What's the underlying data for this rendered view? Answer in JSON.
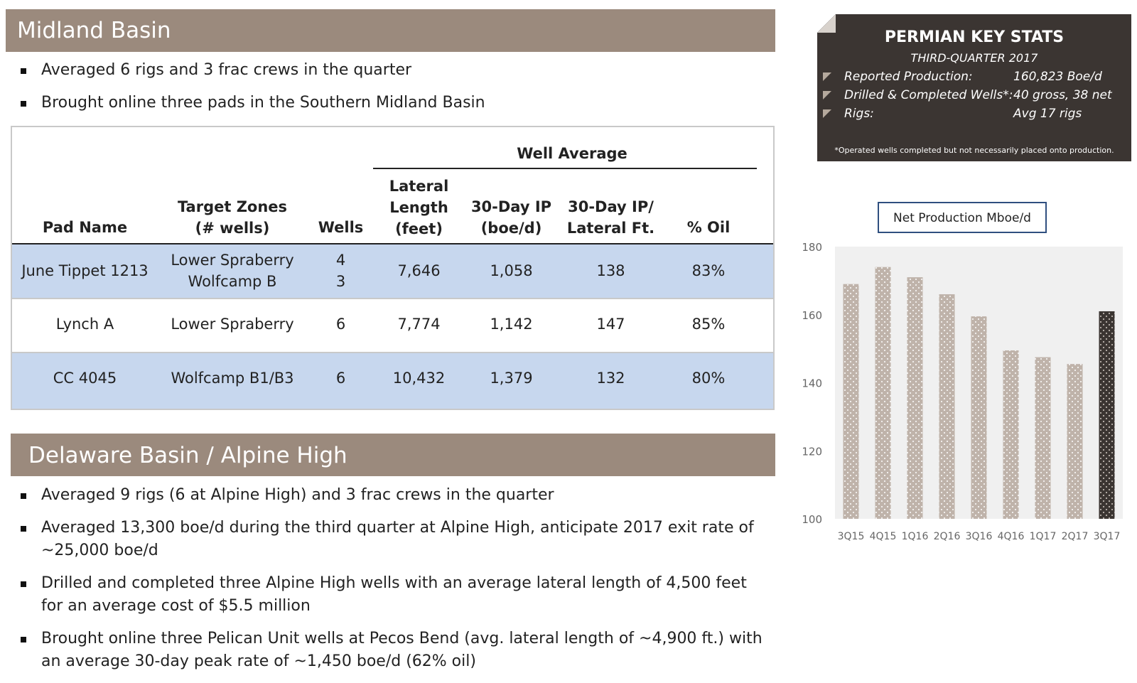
{
  "midland": {
    "title": "Midland Basin",
    "bullets": [
      "Averaged 6 rigs and 3 frac crews in the quarter",
      "Brought online three pads in the Southern Midland Basin"
    ]
  },
  "table": {
    "group_header": "Well Average",
    "headers": {
      "pad_name": "Pad Name",
      "target_zones_1": "Target Zones",
      "target_zones_2": "(# wells)",
      "wells": "Wells",
      "lateral_1": "Lateral",
      "lateral_2": "Length",
      "lateral_3": "(feet)",
      "ip_1": "30-Day IP",
      "ip_2": "(boe/d)",
      "iplat_1": "30-Day IP/",
      "iplat_2": "Lateral Ft.",
      "oil": "% Oil"
    },
    "rows": [
      {
        "pad": "June Tippet 1213",
        "zone1": "Lower Spraberry",
        "zone2": "Wolfcamp B",
        "wells1": "4",
        "wells2": "3",
        "lateral": "7,646",
        "ip": "1,058",
        "iplat": "138",
        "oil": "83%"
      },
      {
        "pad": "Lynch A",
        "zone1": "Lower Spraberry",
        "zone2": "",
        "wells1": "6",
        "wells2": "",
        "lateral": "7,774",
        "ip": "1,142",
        "iplat": "147",
        "oil": "85%"
      },
      {
        "pad": "CC 4045",
        "zone1": "Wolfcamp B1/B3",
        "zone2": "",
        "wells1": "6",
        "wells2": "",
        "lateral": "10,432",
        "ip": "1,379",
        "iplat": "132",
        "oil": "80%"
      }
    ]
  },
  "delaware": {
    "title": "Delaware Basin / Alpine High",
    "bullets": [
      [
        "Averaged 9 rigs (6 at Alpine High) and 3 frac crews in the quarter"
      ],
      [
        "Averaged 13,300 boe/d during the third quarter at Alpine High, anticipate 2017 exit rate of",
        "~25,000 boe/d"
      ],
      [
        "Drilled and completed three Alpine High wells with an average lateral length of 4,500 feet",
        "for an average cost of $5.5 million"
      ],
      [
        "Brought online three Pelican Unit wells at Pecos Bend (avg. lateral length of ~4,900 ft.) with",
        "an average 30-day peak rate of ~1,450 boe/d (62% oil)"
      ]
    ]
  },
  "key_stats": {
    "title": "PERMIAN KEY STATS",
    "subtitle": "THIRD-QUARTER 2017",
    "rows": [
      {
        "label": "Reported Production:",
        "value": "160,823 Boe/d"
      },
      {
        "label": "Drilled & Completed Wells*:",
        "value": "40 gross,  38 net"
      },
      {
        "label": "Rigs:",
        "value": "Avg 17 rigs"
      }
    ],
    "note": "*Operated wells completed but not necessarily placed onto production."
  },
  "colors": {
    "header_bg": "#9b8a7d",
    "row_shade": "#c7d7ee",
    "stats_bg": "#3b3532",
    "bar_light": "#bfb3aa",
    "bar_dark": "#3b3532",
    "plot_bg": "#f0f0f0"
  },
  "chart_data": {
    "type": "bar",
    "title": "Net Production Mboe/d",
    "categories": [
      "3Q15",
      "4Q15",
      "1Q16",
      "2Q16",
      "3Q16",
      "4Q16",
      "1Q17",
      "2Q17",
      "3Q17"
    ],
    "values": [
      169,
      174,
      171,
      166,
      159.5,
      149.5,
      147.5,
      145.5,
      161
    ],
    "highlight_index": 8,
    "ylim": [
      100,
      180
    ],
    "yticks": [
      "100",
      "120",
      "140",
      "160",
      "180"
    ],
    "xlabel": "",
    "ylabel": "",
    "grid": false,
    "legend": "none"
  }
}
